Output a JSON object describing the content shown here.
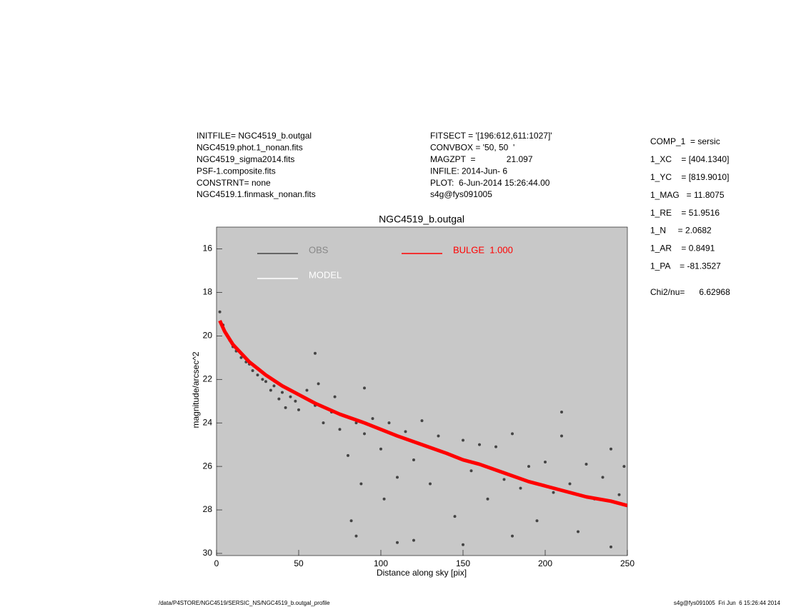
{
  "chart_data": {
    "type": "scatter",
    "title": "NGC4519_b.outgal",
    "xlabel": "Distance along sky [pix]",
    "ylabel": "magnitude/arcsec^2",
    "xlim": [
      0,
      250
    ],
    "ylim": [
      30.1,
      15
    ],
    "xticks": [
      0,
      50,
      100,
      150,
      200,
      250
    ],
    "yticks": [
      16,
      18,
      20,
      22,
      24,
      26,
      28,
      30
    ],
    "background": "#c8c8c8",
    "header_left": [
      "INITFILE= NGC4519_b.outgal",
      "NGC4519.phot.1_nonan.fits",
      "NGC4519_sigma2014.fits",
      "PSF-1.composite.fits",
      "CONSTRNT= none",
      "NGC4519.1.finmask_nonan.fits"
    ],
    "header_middle": [
      "FITSECT = '[196:612,611:1027]'",
      "CONVBOX = '50, 50  '",
      "MAGZPT  =             21.097",
      "INFILE: 2014-Jun- 6",
      "PLOT:  6-Jun-2014 15:26:44.00",
      "s4g@fys091005"
    ],
    "params": [
      "COMP_1  = sersic",
      "1_XC    = [404.1340]",
      "1_YC    = [819.9010]",
      "1_MAG   = 11.8075",
      "1_RE    = 51.9516",
      "1_N     = 2.0682",
      "1_AR    = 0.8491",
      "1_PA    = -81.3527"
    ],
    "chi2": "Chi2/nu=      6.62968",
    "footer_left": "/data/P4STORE/NGC4519/SERSIC_NS/NGC4519_b.outgal_profile",
    "footer_right": "s4g@fys091005  Fri Jun  6 15:26:44 2014",
    "legend_extra": {
      "name": "MODEL",
      "color": "#ffffff"
    },
    "series": [
      {
        "name": "OBS",
        "color": "#444444",
        "mode": "points",
        "x": [
          2,
          4,
          6,
          8,
          10,
          12,
          15,
          18,
          20,
          22,
          25,
          28,
          30,
          33,
          35,
          38,
          40,
          42,
          45,
          48,
          50,
          55,
          60,
          62,
          65,
          70,
          72,
          75,
          80,
          82,
          85,
          88,
          90,
          95,
          100,
          102,
          105,
          110,
          115,
          120,
          125,
          130,
          135,
          140,
          145,
          150,
          155,
          160,
          165,
          170,
          175,
          180,
          185,
          190,
          195,
          200,
          205,
          210,
          215,
          220,
          225,
          230,
          235,
          240,
          245,
          248,
          85,
          90,
          120,
          150,
          180,
          210,
          240,
          60,
          110
        ],
        "values": [
          18.9,
          19.5,
          19.9,
          20.2,
          20.5,
          20.7,
          21.0,
          21.2,
          21.3,
          21.6,
          21.8,
          22.0,
          22.1,
          22.5,
          22.3,
          22.9,
          22.6,
          23.3,
          22.8,
          23.0,
          23.4,
          22.5,
          23.2,
          22.2,
          24.0,
          23.5,
          22.8,
          24.3,
          25.5,
          28.5,
          24.0,
          26.8,
          24.5,
          23.8,
          25.2,
          27.5,
          24.0,
          26.5,
          24.4,
          25.7,
          23.9,
          26.8,
          24.6,
          25.4,
          28.3,
          24.8,
          26.2,
          25.0,
          27.5,
          25.1,
          26.6,
          24.5,
          27.0,
          26.0,
          28.5,
          25.8,
          27.2,
          24.6,
          26.8,
          29.0,
          25.9,
          27.5,
          26.5,
          25.2,
          27.3,
          26.0,
          29.2,
          22.4,
          29.4,
          29.6,
          29.2,
          23.5,
          29.7,
          20.8,
          29.5
        ]
      },
      {
        "name": "BULGE  1.000",
        "color": "#ff0000",
        "mode": "band",
        "x": [
          2,
          5,
          10,
          15,
          20,
          25,
          30,
          40,
          50,
          60,
          75,
          90,
          100,
          110,
          125,
          140,
          150,
          160,
          175,
          190,
          200,
          210,
          225,
          240,
          250
        ],
        "values": [
          19.3,
          19.8,
          20.4,
          20.8,
          21.2,
          21.5,
          21.8,
          22.3,
          22.7,
          23.1,
          23.6,
          24.0,
          24.3,
          24.6,
          25.0,
          25.4,
          25.7,
          25.9,
          26.3,
          26.7,
          26.9,
          27.1,
          27.4,
          27.6,
          27.8
        ]
      }
    ]
  }
}
